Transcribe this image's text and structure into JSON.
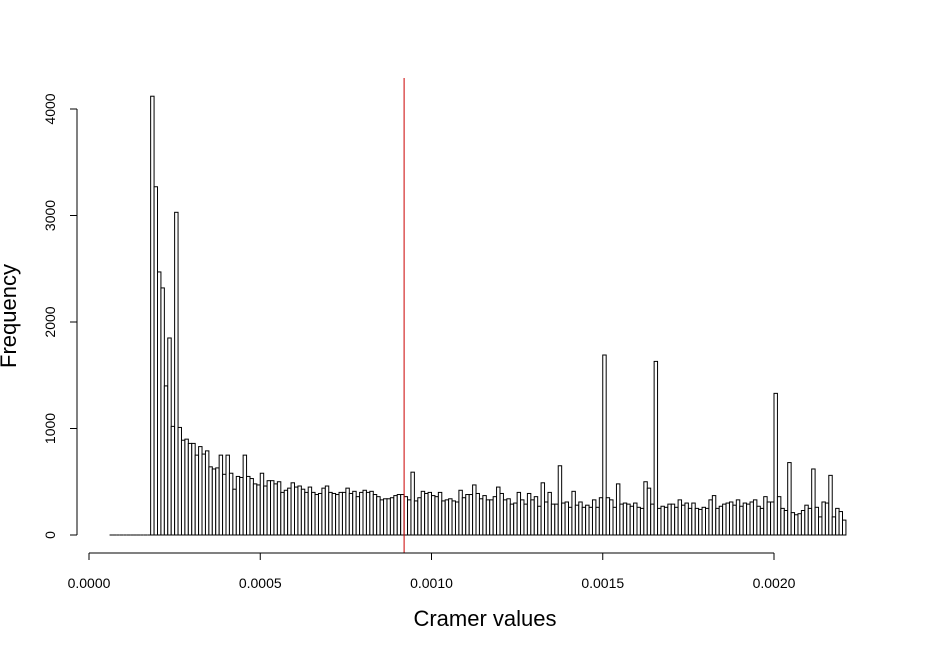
{
  "chart_data": {
    "type": "bar",
    "subtype": "histogram",
    "title": "",
    "xlabel": "Cramer values",
    "ylabel": "Frequency",
    "xlim": [
      0.0,
      0.00225
    ],
    "ylim": [
      0,
      4000
    ],
    "x_ticks": [
      "0.0000",
      "0.0005",
      "0.0010",
      "0.0015",
      "0.0020"
    ],
    "y_ticks": [
      "0",
      "1000",
      "2000",
      "3000",
      "4000"
    ],
    "bin_width": 1e-05,
    "bins_start": 6e-05,
    "values": [
      0,
      0,
      0,
      0,
      0,
      0,
      0,
      0,
      0,
      0,
      0,
      0,
      4120,
      3270,
      2470,
      2320,
      1400,
      1850,
      1020,
      3030,
      1010,
      890,
      900,
      860,
      860,
      750,
      830,
      760,
      790,
      640,
      620,
      630,
      750,
      570,
      750,
      580,
      430,
      550,
      540,
      750,
      550,
      530,
      480,
      470,
      580,
      460,
      510,
      510,
      480,
      500,
      400,
      420,
      440,
      490,
      450,
      460,
      430,
      400,
      450,
      400,
      380,
      390,
      440,
      460,
      400,
      390,
      380,
      400,
      400,
      440,
      390,
      410,
      360,
      400,
      420,
      400,
      410,
      380,
      360,
      330,
      340,
      340,
      350,
      370,
      380,
      380,
      360,
      330,
      590,
      320,
      350,
      410,
      390,
      400,
      370,
      360,
      400,
      320,
      330,
      340,
      320,
      310,
      420,
      350,
      380,
      380,
      470,
      390,
      340,
      370,
      330,
      330,
      360,
      450,
      390,
      330,
      340,
      290,
      300,
      400,
      330,
      290,
      390,
      330,
      360,
      270,
      490,
      310,
      400,
      290,
      290,
      650,
      300,
      310,
      260,
      410,
      280,
      310,
      260,
      280,
      260,
      330,
      260,
      350,
      1690,
      350,
      330,
      260,
      480,
      290,
      300,
      290,
      270,
      300,
      260,
      250,
      500,
      440,
      290,
      1630,
      250,
      270,
      260,
      290,
      290,
      260,
      330,
      280,
      300,
      250,
      300,
      250,
      240,
      260,
      250,
      330,
      370,
      250,
      270,
      290,
      300,
      310,
      280,
      330,
      270,
      300,
      290,
      310,
      330,
      270,
      250,
      360,
      310,
      310,
      1330,
      360,
      250,
      230,
      680,
      210,
      190,
      200,
      230,
      280,
      250,
      620,
      260,
      170,
      310,
      300,
      560,
      170,
      250,
      220,
      140
    ],
    "cutoff_line": {
      "x": 0.00092,
      "color": "#cc0000"
    },
    "colors": {
      "bar_fill": "#ffffff",
      "bar_stroke": "#000000",
      "axis": "#000000"
    }
  }
}
